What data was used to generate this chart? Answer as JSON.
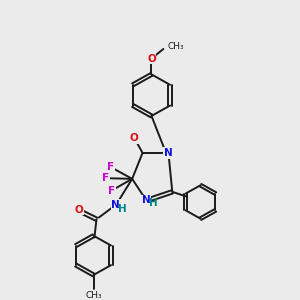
{
  "bg_color": "#ebebeb",
  "bond_color": "#1a1a1a",
  "N_color": "#1010dd",
  "O_color": "#dd1010",
  "F_color": "#cc00cc",
  "H_color": "#008888",
  "figsize": [
    3.0,
    3.0
  ],
  "dpi": 100,
  "xlim": [
    0,
    10
  ],
  "ylim": [
    0,
    10
  ]
}
